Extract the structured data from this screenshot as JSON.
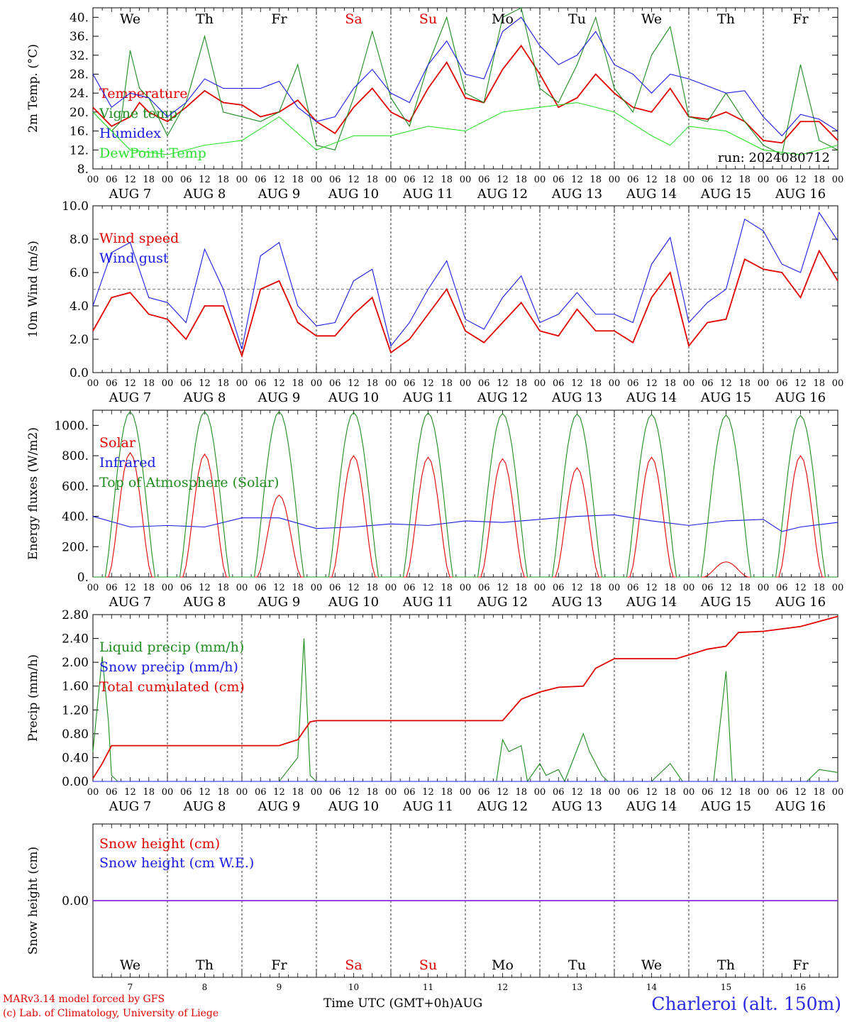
{
  "run_label": "run: 2024080712",
  "footer": {
    "model": "MARv3.14 model forced by GFS",
    "lab": "(c) Lab. of Climatology, University of Liege",
    "xlabel": "Time UTC (GMT+0h)",
    "month": "AUG",
    "station": "Charleroi (alt. 150m)"
  },
  "days": [
    {
      "abbr": "We",
      "date": "AUG  7",
      "num": "7",
      "weekend": false
    },
    {
      "abbr": "Th",
      "date": "AUG  8",
      "num": "8",
      "weekend": false
    },
    {
      "abbr": "Fr",
      "date": "AUG  9",
      "num": "9",
      "weekend": false
    },
    {
      "abbr": "Sa",
      "date": "AUG 10",
      "num": "10",
      "weekend": true
    },
    {
      "abbr": "Su",
      "date": "AUG 11",
      "num": "11",
      "weekend": true
    },
    {
      "abbr": "Mo",
      "date": "AUG 12",
      "num": "12",
      "weekend": false
    },
    {
      "abbr": "Tu",
      "date": "AUG 13",
      "num": "13",
      "weekend": false
    },
    {
      "abbr": "We",
      "date": "AUG 14",
      "num": "14",
      "weekend": false
    },
    {
      "abbr": "Th",
      "date": "AUG 15",
      "num": "15",
      "weekend": false
    },
    {
      "abbr": "Fr",
      "date": "AUG 16",
      "num": "16",
      "weekend": false
    }
  ],
  "hour_ticks": [
    "00",
    "06",
    "12",
    "18"
  ],
  "colors": {
    "red": "#e00000",
    "blue": "#1a1ae6",
    "green": "#1e8c1e",
    "lightgreen": "#2ee02e",
    "weekend": "#e00000",
    "purple": "#8a2be2"
  },
  "chart_data": [
    {
      "type": "line",
      "ylabel": "2m Temp. (°C)",
      "ylim": [
        8,
        42
      ],
      "yticks": [
        "8.",
        "12.",
        "16.",
        "20.",
        "24.",
        "28.",
        "32.",
        "36.",
        "40."
      ],
      "x_unit": "hours since AUG 7 00 UTC",
      "series": [
        {
          "name": "Temperature",
          "color": "red",
          "x": [
            0,
            6,
            12,
            15,
            18,
            24,
            30,
            36,
            42,
            48,
            54,
            60,
            66,
            72,
            78,
            84,
            90,
            96,
            102,
            108,
            114,
            120,
            126,
            132,
            138,
            144,
            150,
            156,
            162,
            168,
            174,
            180,
            186,
            192,
            198,
            204,
            210,
            216,
            222,
            228,
            234,
            240
          ],
          "values": [
            21,
            17,
            19,
            22,
            20,
            18,
            21,
            24.5,
            22,
            21.5,
            19,
            20,
            22.5,
            18,
            15.5,
            21,
            25,
            20,
            18,
            25,
            30.5,
            23,
            22,
            29,
            34,
            28,
            21,
            23,
            28,
            24,
            21,
            20,
            25,
            19,
            18.5,
            20,
            18,
            14,
            13.5,
            18,
            18,
            14
          ]
        },
        {
          "name": "Vigne temp",
          "color": "green",
          "x": [
            0,
            6,
            9,
            12,
            15,
            18,
            24,
            30,
            36,
            42,
            48,
            54,
            60,
            66,
            72,
            78,
            84,
            90,
            96,
            102,
            108,
            114,
            120,
            126,
            132,
            138,
            144,
            150,
            156,
            162,
            168,
            174,
            180,
            186,
            192,
            198,
            204,
            210,
            216,
            222,
            228,
            234,
            240
          ],
          "values": [
            20,
            16,
            18,
            33,
            25,
            23,
            15,
            22,
            36,
            20,
            19,
            18,
            20,
            30,
            13,
            12,
            23,
            37,
            23,
            17,
            30,
            40,
            24,
            22,
            40,
            42,
            25,
            22,
            30,
            40,
            25,
            20,
            32,
            38,
            19,
            18,
            24,
            18,
            13,
            11,
            30,
            14,
            12
          ]
        },
        {
          "name": "Humidex",
          "color": "blue",
          "x": [
            0,
            6,
            12,
            18,
            24,
            30,
            36,
            42,
            48,
            54,
            60,
            66,
            72,
            78,
            84,
            90,
            96,
            102,
            108,
            114,
            120,
            126,
            132,
            138,
            144,
            150,
            156,
            162,
            168,
            174,
            180,
            186,
            192,
            198,
            204,
            210,
            216,
            222,
            228,
            234,
            240
          ],
          "values": [
            28,
            21,
            24,
            23,
            19,
            22,
            27,
            25,
            25,
            25,
            26.5,
            21,
            18,
            19,
            25,
            29,
            24,
            22,
            30,
            35,
            28,
            27,
            37,
            40,
            34,
            30,
            32,
            37,
            30,
            28,
            24,
            28,
            27,
            25.5,
            24,
            24.5,
            19,
            15,
            19.5,
            18.5,
            16
          ]
        },
        {
          "name": "DewPoint Temp",
          "color": "lightgreen",
          "x": [
            0,
            12,
            24,
            36,
            48,
            60,
            72,
            84,
            96,
            108,
            120,
            132,
            144,
            156,
            168,
            180,
            186,
            192,
            204,
            216,
            228,
            240
          ],
          "values": [
            20,
            12,
            11,
            13,
            14,
            19,
            12,
            15,
            15,
            17,
            16,
            20,
            21,
            22,
            20,
            15,
            13,
            17,
            16,
            12,
            11,
            13
          ]
        }
      ]
    },
    {
      "type": "line",
      "ylabel": "10m Wind (m/s)",
      "ylim": [
        0,
        10
      ],
      "yticks": [
        "0.0",
        "2.0",
        "4.0",
        "6.0",
        "8.0",
        "10.0"
      ],
      "reference_line": 5.0,
      "series": [
        {
          "name": "Wind speed",
          "color": "red",
          "x": [
            0,
            6,
            12,
            18,
            24,
            30,
            36,
            42,
            48,
            54,
            60,
            66,
            72,
            78,
            84,
            90,
            96,
            102,
            108,
            114,
            120,
            126,
            132,
            138,
            144,
            150,
            156,
            162,
            168,
            174,
            180,
            186,
            192,
            198,
            204,
            210,
            216,
            222,
            228,
            234,
            240
          ],
          "values": [
            2.5,
            4.5,
            4.8,
            3.5,
            3.2,
            2,
            4,
            4,
            1,
            5,
            5.5,
            3,
            2.2,
            2.2,
            3.5,
            4.5,
            1.2,
            2,
            3.5,
            5,
            2.5,
            1.8,
            3,
            4.2,
            2.5,
            2.2,
            3.8,
            2.5,
            2.5,
            1.8,
            4.5,
            6,
            1.6,
            3,
            3.2,
            6.8,
            6.2,
            6,
            4.5,
            7.3,
            5.5
          ]
        },
        {
          "name": "Wind gust",
          "color": "blue",
          "x": [
            0,
            6,
            12,
            18,
            24,
            30,
            36,
            42,
            48,
            54,
            60,
            66,
            72,
            78,
            84,
            90,
            96,
            102,
            108,
            114,
            120,
            126,
            132,
            138,
            144,
            150,
            156,
            162,
            168,
            174,
            180,
            186,
            192,
            198,
            204,
            210,
            216,
            222,
            228,
            234,
            240
          ],
          "values": [
            4,
            7.2,
            7.8,
            4.5,
            4.2,
            3,
            7.4,
            5,
            1.4,
            7,
            7.8,
            4,
            2.8,
            3,
            5.5,
            6.2,
            1.6,
            3,
            5,
            6.7,
            3.2,
            2.6,
            4.5,
            5.8,
            3,
            3.5,
            4.8,
            3.5,
            3.5,
            3,
            6.5,
            8.1,
            3,
            4.2,
            5,
            9.2,
            8.5,
            6.5,
            6,
            9.6,
            7.9
          ]
        }
      ]
    },
    {
      "type": "line",
      "ylabel": "Energy fluxes (W/m2)",
      "ylim": [
        0,
        1100
      ],
      "yticks": [
        "0.",
        "200.",
        "400.",
        "600.",
        "800.",
        "1000."
      ],
      "series": [
        {
          "name": "Solar",
          "color": "red",
          "peaks": [
            820,
            810,
            540,
            800,
            790,
            780,
            720,
            790,
            100,
            800
          ]
        },
        {
          "name": "Infrared",
          "color": "blue",
          "x": [
            0,
            12,
            24,
            36,
            48,
            60,
            72,
            84,
            96,
            108,
            120,
            132,
            144,
            156,
            168,
            180,
            192,
            204,
            216,
            222,
            228,
            240
          ],
          "values": [
            400,
            330,
            340,
            330,
            390,
            390,
            320,
            330,
            350,
            340,
            370,
            360,
            380,
            400,
            410,
            370,
            340,
            370,
            380,
            300,
            330,
            360
          ]
        },
        {
          "name": "Top of Atmosphere (Solar)",
          "color": "green",
          "peaks": [
            1090,
            1090,
            1090,
            1085,
            1082,
            1078,
            1075,
            1072,
            1068,
            1065
          ]
        }
      ]
    },
    {
      "type": "line",
      "ylabel": "Precip (mm/h)",
      "ylim": [
        0,
        2.8
      ],
      "yticks": [
        "0.00",
        "0.40",
        "0.80",
        "1.20",
        "1.60",
        "2.00",
        "2.40",
        "2.80"
      ],
      "series": [
        {
          "name": "Liquid precip (mm/h)",
          "color": "green",
          "x": [
            0,
            3,
            5,
            6,
            8,
            10,
            60,
            66,
            68,
            70,
            72,
            74,
            130,
            132,
            134,
            138,
            140,
            144,
            146,
            150,
            152,
            158,
            160,
            164,
            166,
            168,
            180,
            186,
            190,
            200,
            204,
            206,
            208,
            210,
            230,
            234,
            240
          ],
          "values": [
            0.5,
            2.1,
            1.0,
            0.1,
            0,
            0,
            0,
            0.4,
            2.4,
            0.1,
            0,
            0,
            0,
            0.7,
            0.5,
            0.6,
            0,
            0.3,
            0.1,
            0.2,
            0,
            0.8,
            0.5,
            0.1,
            0,
            0,
            0,
            0.3,
            0,
            0,
            1.85,
            0,
            0,
            0,
            0,
            0.2,
            0.15
          ]
        },
        {
          "name": "Snow precip (mm/h)",
          "color": "blue",
          "x": [
            0,
            240
          ],
          "values": [
            0,
            0
          ]
        },
        {
          "name": "Total cumulated (cm)",
          "color": "red",
          "x": [
            0,
            3,
            6,
            60,
            66,
            70,
            72,
            132,
            138,
            144,
            150,
            158,
            162,
            168,
            188,
            198,
            204,
            208,
            216,
            228,
            240
          ],
          "values": [
            0.05,
            0.3,
            0.6,
            0.6,
            0.7,
            1.0,
            1.02,
            1.02,
            1.38,
            1.5,
            1.58,
            1.6,
            1.9,
            2.06,
            2.06,
            2.22,
            2.27,
            2.5,
            2.52,
            2.6,
            2.77
          ]
        }
      ]
    },
    {
      "type": "line",
      "ylabel": "Snow height (cm)",
      "yticks": [
        "0.00"
      ],
      "series": [
        {
          "name": "Snow height (cm)",
          "color": "red",
          "x": [
            0,
            240
          ],
          "values": [
            0,
            0
          ]
        },
        {
          "name": "Snow height (cm W.E.)",
          "color": "blue",
          "x": [
            0,
            240
          ],
          "values": [
            0,
            0
          ]
        }
      ]
    }
  ]
}
